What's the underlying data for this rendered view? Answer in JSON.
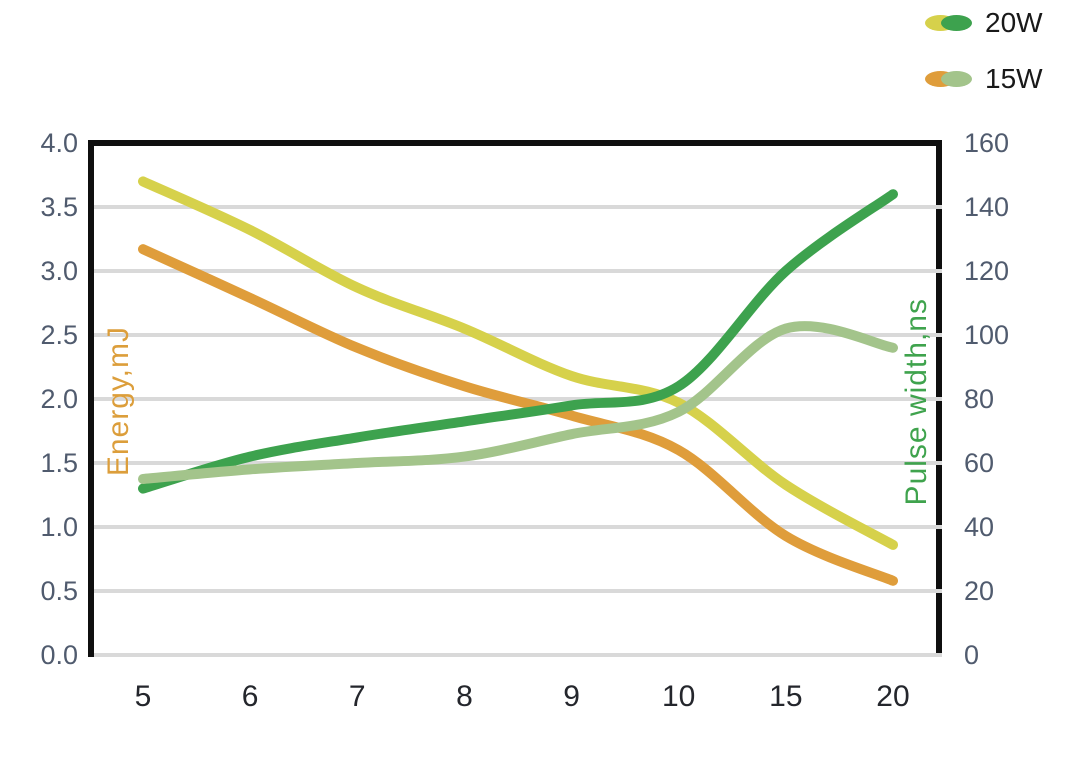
{
  "legend": {
    "items": [
      {
        "label": "20W",
        "marker_colors": [
          "#d6d14b",
          "#3da24e"
        ],
        "marker_names": [
          "energy-20w-dot",
          "pulse-20w-dot"
        ]
      },
      {
        "label": "15W",
        "marker_colors": [
          "#df9d3b",
          "#a3c48b"
        ],
        "marker_names": [
          "energy-15w-dot",
          "pulse-15w-dot"
        ]
      }
    ]
  },
  "chart_data": {
    "type": "line",
    "categories": [
      "5",
      "6",
      "7",
      "8",
      "9",
      "10",
      "15",
      "20"
    ],
    "left_axis": {
      "label": "Energy,mJ",
      "color": "#dc9e3b",
      "min": 0,
      "max": 4,
      "ticks": [
        "4.0",
        "3.5",
        "3.0",
        "2.5",
        "2.0",
        "1.5",
        "1.0",
        "0.5",
        "0.0"
      ]
    },
    "right_axis": {
      "label": "Pulse width,ns",
      "color": "#3fa34d",
      "min": 0,
      "max": 160,
      "ticks": [
        "160",
        "140",
        "120",
        "100",
        "80",
        "60",
        "40",
        "20",
        "0"
      ]
    },
    "series": [
      {
        "name": "20W Energy",
        "axis": "left",
        "color": "#d6d14b",
        "values": [
          3.7,
          3.32,
          2.87,
          2.55,
          2.18,
          1.97,
          1.33,
          0.86
        ]
      },
      {
        "name": "15W Energy",
        "axis": "left",
        "color": "#df9d3b",
        "values": [
          3.17,
          2.79,
          2.4,
          2.1,
          1.87,
          1.6,
          0.93,
          0.58
        ]
      },
      {
        "name": "20W Pulse width",
        "axis": "right",
        "color": "#3da24e",
        "values": [
          52,
          62,
          68,
          73,
          78,
          84,
          120,
          144
        ]
      },
      {
        "name": "15W Pulse width",
        "axis": "right",
        "color": "#a3c48b",
        "values": [
          55,
          58,
          60,
          62,
          69,
          76,
          102,
          96
        ]
      }
    ],
    "grid": true,
    "gridline_step_left_axis": 0.5,
    "legend_position": "top-right"
  },
  "colors": {
    "background": "#ffffff",
    "gridline": "#d9d9d9",
    "frame": "#0f0f0f",
    "y_tick_text": "#505b6e",
    "x_tick_text": "#24262c",
    "legend_text": "#191919"
  }
}
